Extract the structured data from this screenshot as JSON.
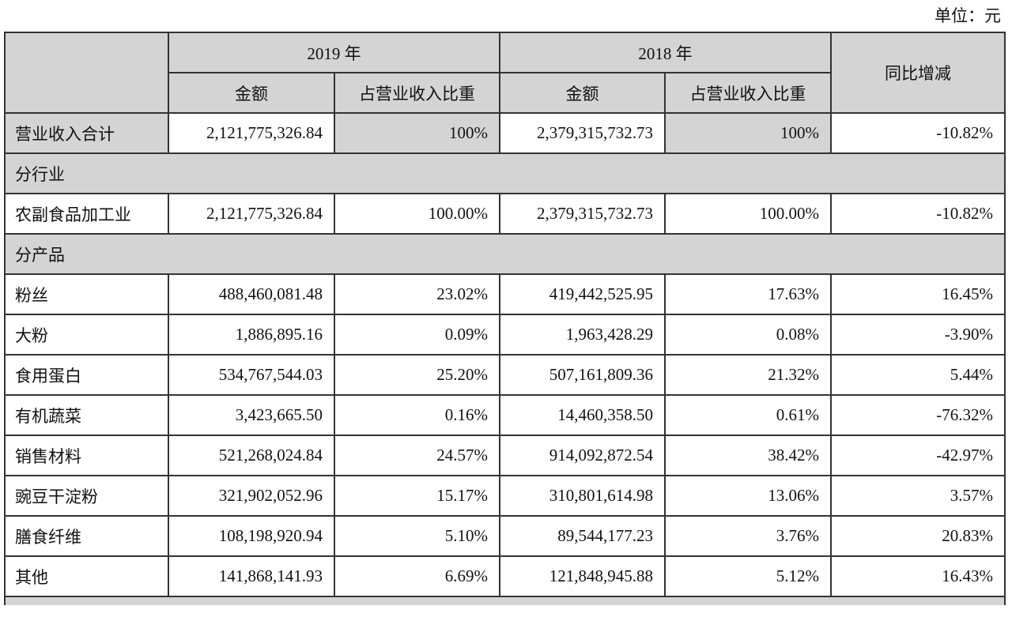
{
  "unit_label": "单位：元",
  "header": {
    "year1": "2019 年",
    "year2": "2018 年",
    "yoy": "同比增减",
    "amount": "金额",
    "share": "占营业收入比重"
  },
  "total": {
    "label": "营业收入合计",
    "amt2019": "2,121,775,326.84",
    "pct2019": "100%",
    "amt2018": "2,379,315,732.73",
    "pct2018": "100%",
    "yoy": "-10.82%"
  },
  "section_industry": "分行业",
  "industry_rows": [
    {
      "label": "农副食品加工业",
      "amt2019": "2,121,775,326.84",
      "pct2019": "100.00%",
      "amt2018": "2,379,315,732.73",
      "pct2018": "100.00%",
      "yoy": "-10.82%"
    }
  ],
  "section_product": "分产品",
  "product_rows": [
    {
      "label": "粉丝",
      "amt2019": "488,460,081.48",
      "pct2019": "23.02%",
      "amt2018": "419,442,525.95",
      "pct2018": "17.63%",
      "yoy": "16.45%"
    },
    {
      "label": "大粉",
      "amt2019": "1,886,895.16",
      "pct2019": "0.09%",
      "amt2018": "1,963,428.29",
      "pct2018": "0.08%",
      "yoy": "-3.90%"
    },
    {
      "label": "食用蛋白",
      "amt2019": "534,767,544.03",
      "pct2019": "25.20%",
      "amt2018": "507,161,809.36",
      "pct2018": "21.32%",
      "yoy": "5.44%"
    },
    {
      "label": "有机蔬菜",
      "amt2019": "3,423,665.50",
      "pct2019": "0.16%",
      "amt2018": "14,460,358.50",
      "pct2018": "0.61%",
      "yoy": "-76.32%"
    },
    {
      "label": "销售材料",
      "amt2019": "521,268,024.84",
      "pct2019": "24.57%",
      "amt2018": "914,092,872.54",
      "pct2018": "38.42%",
      "yoy": "-42.97%"
    },
    {
      "label": "豌豆干淀粉",
      "amt2019": "321,902,052.96",
      "pct2019": "15.17%",
      "amt2018": "310,801,614.98",
      "pct2018": "13.06%",
      "yoy": "3.57%"
    },
    {
      "label": "膳食纤维",
      "amt2019": "108,198,920.94",
      "pct2019": "5.10%",
      "amt2018": "89,544,177.23",
      "pct2018": "3.76%",
      "yoy": "20.83%"
    },
    {
      "label": "其他",
      "amt2019": "141,868,141.93",
      "pct2019": "6.69%",
      "amt2018": "121,848,945.88",
      "pct2018": "5.12%",
      "yoy": "16.43%"
    }
  ],
  "colors": {
    "header_fill": "#d4d4d4",
    "border": "#333333"
  }
}
